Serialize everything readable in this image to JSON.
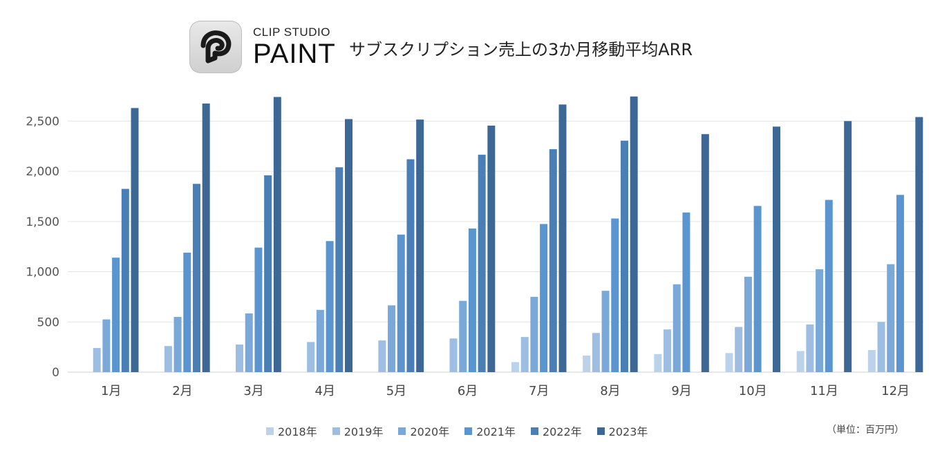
{
  "header": {
    "brand_top": "CLIP STUDIO",
    "brand_main": "PAINT",
    "logo_icon": "clip-studio-paint-logo-icon"
  },
  "chart_data": {
    "type": "bar",
    "title": "サブスクリプション売上の3か月移動平均ARR",
    "unit_note": "（単位：百万円）",
    "xlabel": "",
    "ylabel": "",
    "ylim": [
      0,
      2750
    ],
    "yticks": [
      0,
      500,
      1000,
      1500,
      2000,
      2500
    ],
    "ytick_labels": [
      "0",
      "500",
      "1,000",
      "1,500",
      "2,000",
      "2,500"
    ],
    "grid": true,
    "legend_position": "bottom",
    "categories": [
      "1月",
      "2月",
      "3月",
      "4月",
      "5月",
      "6月",
      "7月",
      "8月",
      "9月",
      "10月",
      "11月",
      "12月"
    ],
    "series": [
      {
        "name": "2018年",
        "color": "#bcd2ea",
        "values": [
          null,
          null,
          null,
          null,
          null,
          null,
          100,
          165,
          180,
          190,
          210,
          220
        ]
      },
      {
        "name": "2019年",
        "color": "#9dbde2",
        "values": [
          240,
          260,
          275,
          300,
          315,
          335,
          350,
          390,
          425,
          450,
          475,
          500
        ]
      },
      {
        "name": "2020年",
        "color": "#7aa8d8",
        "values": [
          525,
          550,
          585,
          620,
          665,
          710,
          750,
          810,
          875,
          950,
          1025,
          1075
        ]
      },
      {
        "name": "2021年",
        "color": "#5b95d0",
        "values": [
          1140,
          1190,
          1240,
          1305,
          1370,
          1430,
          1475,
          1530,
          1590,
          1655,
          1715,
          1765
        ]
      },
      {
        "name": "2022年",
        "color": "#4a7fb5",
        "values": [
          1825,
          1875,
          1960,
          2040,
          2120,
          2165,
          2220,
          2305,
          null,
          null,
          null,
          null
        ]
      },
      {
        "name": "2023年",
        "color": "#3d6896",
        "values": [
          2630,
          2675,
          2740,
          2520,
          2515,
          2455,
          2665,
          2745,
          2370,
          2445,
          2500,
          2540
        ]
      }
    ]
  }
}
